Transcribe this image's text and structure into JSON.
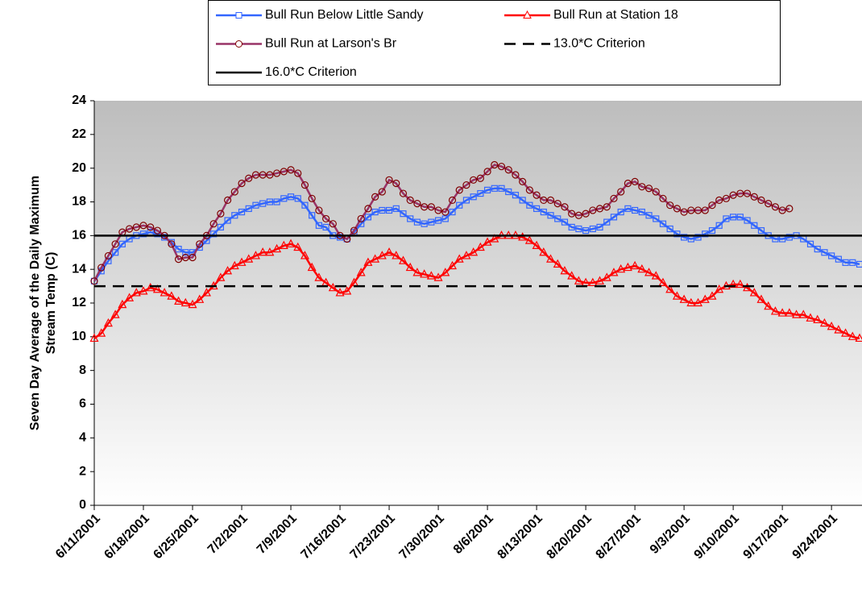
{
  "chart_data": {
    "type": "line",
    "ylabel": [
      "Seven Day Average of the Daily Maximum",
      "Stream Temp (C)"
    ],
    "ylim": [
      0,
      24
    ],
    "yticks": [
      0,
      2,
      4,
      6,
      8,
      10,
      12,
      14,
      16,
      18,
      20,
      22,
      24
    ],
    "categories": [
      "6/11/2001",
      null,
      null,
      null,
      null,
      null,
      null,
      "6/18/2001",
      null,
      null,
      null,
      null,
      null,
      null,
      "6/25/2001",
      null,
      null,
      null,
      null,
      null,
      null,
      "7/2/2001",
      null,
      null,
      null,
      null,
      null,
      null,
      "7/9/2001",
      null,
      null,
      null,
      null,
      null,
      null,
      "7/16/2001",
      null,
      null,
      null,
      null,
      null,
      null,
      "7/23/2001",
      null,
      null,
      null,
      null,
      null,
      null,
      "7/30/2001",
      null,
      null,
      null,
      null,
      null,
      null,
      "8/6/2001",
      null,
      null,
      null,
      null,
      null,
      null,
      "8/13/2001",
      null,
      null,
      null,
      null,
      null,
      null,
      "8/20/2001",
      null,
      null,
      null,
      null,
      null,
      null,
      "8/27/2001",
      null,
      null,
      null,
      null,
      null,
      null,
      "9/3/2001",
      null,
      null,
      null,
      null,
      null,
      null,
      "9/10/2001",
      null,
      null,
      null,
      null,
      null,
      null,
      "9/17/2001",
      null,
      null,
      null,
      null,
      null,
      null,
      "9/24/2001",
      null,
      null,
      null,
      null
    ],
    "series": [
      {
        "name": "Bull Run Below Little Sandy",
        "color": "#3366ff",
        "marker": "square",
        "values": [
          13.3,
          13.9,
          14.5,
          15.0,
          15.5,
          15.8,
          16.0,
          16.1,
          16.2,
          16.1,
          15.9,
          15.6,
          15.2,
          15.0,
          15.0,
          15.3,
          15.7,
          16.1,
          16.5,
          16.9,
          17.2,
          17.4,
          17.6,
          17.8,
          17.9,
          18.0,
          18.0,
          18.2,
          18.3,
          18.2,
          17.8,
          17.2,
          16.6,
          16.5,
          16.0,
          15.9,
          15.8,
          16.2,
          16.7,
          17.1,
          17.4,
          17.5,
          17.5,
          17.6,
          17.3,
          17.0,
          16.8,
          16.7,
          16.8,
          16.9,
          17.0,
          17.4,
          17.8,
          18.1,
          18.3,
          18.5,
          18.7,
          18.8,
          18.8,
          18.6,
          18.4,
          18.1,
          17.8,
          17.6,
          17.4,
          17.2,
          17.0,
          16.8,
          16.5,
          16.4,
          16.3,
          16.4,
          16.5,
          16.8,
          17.1,
          17.4,
          17.6,
          17.5,
          17.4,
          17.2,
          17.0,
          16.7,
          16.4,
          16.1,
          15.9,
          15.8,
          15.9,
          16.1,
          16.3,
          16.6,
          17.0,
          17.1,
          17.1,
          16.9,
          16.6,
          16.3,
          16.0,
          15.8,
          15.8,
          15.9,
          16.0,
          15.8,
          15.5,
          15.2,
          15.0,
          14.8,
          14.6,
          14.4,
          14.4,
          14.3
        ]
      },
      {
        "name": "Bull Run at Station 18",
        "color": "#ff0000",
        "marker": "triangle",
        "values": [
          9.9,
          10.2,
          10.8,
          11.3,
          11.9,
          12.3,
          12.6,
          12.7,
          12.9,
          12.8,
          12.6,
          12.4,
          12.1,
          12.0,
          11.9,
          12.2,
          12.6,
          13.0,
          13.5,
          13.9,
          14.2,
          14.4,
          14.6,
          14.8,
          15.0,
          15.0,
          15.2,
          15.4,
          15.5,
          15.3,
          14.8,
          14.1,
          13.5,
          13.2,
          12.9,
          12.6,
          12.7,
          13.2,
          13.8,
          14.4,
          14.6,
          14.8,
          15.0,
          14.8,
          14.5,
          14.1,
          13.8,
          13.7,
          13.6,
          13.5,
          13.8,
          14.2,
          14.6,
          14.8,
          15.0,
          15.3,
          15.6,
          15.8,
          16.0,
          16.0,
          16.0,
          15.9,
          15.7,
          15.4,
          15.0,
          14.6,
          14.3,
          13.9,
          13.6,
          13.3,
          13.2,
          13.2,
          13.3,
          13.5,
          13.8,
          14.0,
          14.1,
          14.2,
          14.0,
          13.8,
          13.6,
          13.2,
          12.8,
          12.4,
          12.2,
          12.0,
          12.0,
          12.2,
          12.4,
          12.8,
          13.0,
          13.1,
          13.1,
          12.9,
          12.6,
          12.2,
          11.8,
          11.5,
          11.4,
          11.4,
          11.3,
          11.3,
          11.1,
          11.0,
          10.8,
          10.6,
          10.4,
          10.2,
          10.0,
          9.9
        ]
      },
      {
        "name": "Bull Run at Larson's Br",
        "color": "#993366",
        "marker_color": "#800000",
        "marker": "circle",
        "values": [
          13.3,
          14.1,
          14.8,
          15.5,
          16.2,
          16.4,
          16.5,
          16.6,
          16.5,
          16.3,
          16.0,
          15.5,
          14.6,
          14.7,
          14.7,
          15.5,
          16.0,
          16.7,
          17.3,
          18.1,
          18.6,
          19.1,
          19.4,
          19.6,
          19.6,
          19.6,
          19.7,
          19.8,
          19.9,
          19.7,
          19.0,
          18.2,
          17.5,
          17.0,
          16.7,
          16.0,
          15.8,
          16.3,
          17.0,
          17.6,
          18.3,
          18.6,
          19.3,
          19.1,
          18.5,
          18.1,
          17.9,
          17.7,
          17.7,
          17.5,
          17.4,
          18.1,
          18.7,
          19.0,
          19.3,
          19.4,
          19.8,
          20.2,
          20.1,
          19.9,
          19.6,
          19.2,
          18.7,
          18.4,
          18.1,
          18.1,
          17.9,
          17.7,
          17.3,
          17.2,
          17.3,
          17.5,
          17.6,
          17.7,
          18.2,
          18.6,
          19.1,
          19.2,
          18.9,
          18.8,
          18.6,
          18.2,
          17.8,
          17.6,
          17.4,
          17.5,
          17.5,
          17.5,
          17.8,
          18.1,
          18.2,
          18.4,
          18.5,
          18.5,
          18.3,
          18.1,
          17.9,
          17.7,
          17.5,
          17.6,
          null,
          null,
          null,
          null,
          null,
          null,
          null,
          null,
          null,
          null
        ]
      },
      {
        "name": "13.0*C Criterion",
        "color": "#000000",
        "dash": true,
        "value": 13
      },
      {
        "name": "16.0*C Criterion",
        "color": "#000000",
        "dash": false,
        "value": 16
      }
    ]
  }
}
